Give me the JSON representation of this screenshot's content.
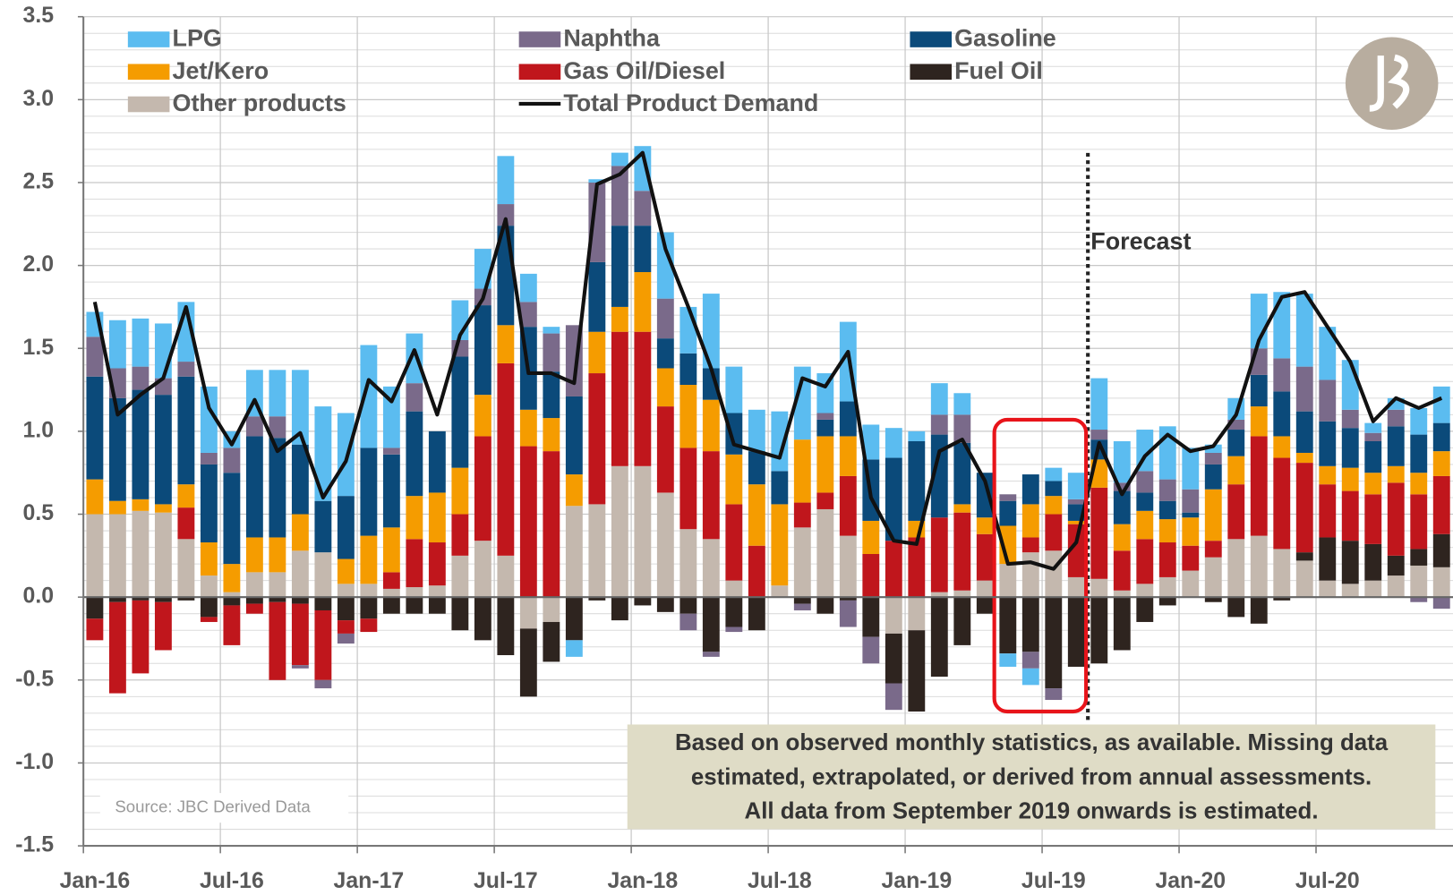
{
  "chart_data": {
    "type": "bar",
    "stacked": true,
    "categories": [
      "Jan-16",
      null,
      null,
      null,
      null,
      null,
      "Jul-16",
      null,
      null,
      null,
      null,
      null,
      "Jan-17",
      null,
      null,
      null,
      null,
      null,
      "Jul-17",
      null,
      null,
      null,
      null,
      null,
      "Jan-18",
      null,
      null,
      null,
      null,
      null,
      "Jul-18",
      null,
      null,
      null,
      null,
      null,
      "Jan-19",
      null,
      null,
      null,
      null,
      null,
      "Jul-19",
      null,
      null,
      null,
      null,
      null,
      "Jan-20",
      null,
      null,
      null,
      null,
      null,
      "Jul-20",
      null,
      null,
      null,
      null,
      null
    ],
    "series": [
      {
        "name": "LPG",
        "color": "#5bbcf0",
        "values": [
          0.15,
          0.29,
          0.29,
          0.33,
          0.36,
          0.4,
          0.1,
          0.28,
          0.28,
          0.45,
          0.57,
          0.5,
          0.62,
          0.37,
          0.3,
          0,
          0.24,
          0.24,
          0.29,
          0.17,
          0.04,
          -0.1,
          0.02,
          0.08,
          0.27,
          0.4,
          0.28,
          0.45,
          0.28,
          0.25,
          0.36,
          0.44,
          0.24,
          0.48,
          0.21,
          0.18,
          0.06,
          0.19,
          0.13,
          0,
          -0.08,
          -0.1,
          0.08,
          0.16,
          0.31,
          0.25,
          0.25,
          0.32,
          0.25,
          0.05,
          0.13,
          0.33,
          0.4,
          0.44,
          0.32,
          0.3,
          0.06,
          0.07,
          0.16,
          0.22
        ]
      },
      {
        "name": "Naphtha",
        "color": "#7a6a8a",
        "values": [
          0.24,
          0.18,
          0.14,
          0.1,
          0.09,
          0.07,
          0.15,
          0.12,
          0.13,
          -0.02,
          -0.05,
          -0.06,
          0,
          0.04,
          0.17,
          0,
          0.1,
          0.1,
          0.13,
          0.15,
          0.23,
          0.43,
          0.48,
          0.36,
          0.21,
          0.24,
          -0.1,
          -0.03,
          -0.03,
          0,
          0,
          -0.04,
          0.04,
          -0.16,
          -0.16,
          -0.16,
          0,
          0.12,
          0.17,
          0,
          0.04,
          -0.1,
          -0.07,
          0.03,
          0.06,
          0.05,
          0.13,
          0.13,
          0.14,
          0.07,
          0.06,
          0.16,
          0.2,
          0.27,
          0.25,
          0.11,
          0.05,
          0.1,
          -0.03,
          -0.07
        ]
      },
      {
        "name": "Gasoline",
        "color": "#0b4a7a",
        "values": [
          0.62,
          0.62,
          0.66,
          0.66,
          0.65,
          0.47,
          0.55,
          0.61,
          0.6,
          0.42,
          0.31,
          0.38,
          0.53,
          0.44,
          0.51,
          0.37,
          0.67,
          0.54,
          0.6,
          0.5,
          0.28,
          0.47,
          0.42,
          0.49,
          0.28,
          0.18,
          0.19,
          0.19,
          0.25,
          0.2,
          0.2,
          0,
          0.1,
          0.21,
          0.37,
          0.5,
          0.48,
          0.5,
          0.37,
          0.27,
          0.15,
          0.18,
          0.09,
          0.1,
          0.12,
          0.2,
          0.11,
          0.11,
          0.03,
          0.15,
          0.16,
          0.19,
          0.27,
          0.25,
          0.27,
          0.24,
          0.19,
          0.24,
          0.23,
          0.17
        ]
      },
      {
        "name": "Jet/Kero",
        "color": "#f59c00",
        "values": [
          0.21,
          0.08,
          0.07,
          0.05,
          0.14,
          0.2,
          0.17,
          0.21,
          0.21,
          0.22,
          0,
          0.15,
          0.29,
          0.27,
          0.26,
          0.3,
          0.28,
          0.25,
          0.23,
          0.22,
          0.2,
          0.19,
          0.25,
          0.15,
          0.36,
          0.23,
          0.38,
          0.31,
          0.3,
          0.37,
          0.49,
          0.38,
          0.34,
          0.24,
          0.2,
          0,
          0.1,
          0,
          0.05,
          0.1,
          0.23,
          0.2,
          0.11,
          0.02,
          0.17,
          0.16,
          0.17,
          0.14,
          0.17,
          0.31,
          0.17,
          0.18,
          0.13,
          0.06,
          0.11,
          0.14,
          0.13,
          0.1,
          0.13,
          0.15
        ]
      },
      {
        "name": "Gas Oil/Diesel",
        "color": "#c0161c",
        "values": [
          -0.13,
          -0.55,
          -0.44,
          -0.29,
          0.19,
          -0.03,
          -0.24,
          -0.06,
          -0.47,
          -0.37,
          -0.42,
          -0.08,
          -0.08,
          0.1,
          0.29,
          0.26,
          0.25,
          0.63,
          1.16,
          0.91,
          0.88,
          0,
          0.79,
          0.81,
          0.81,
          0.52,
          0.49,
          0.53,
          0.46,
          0.31,
          0,
          0.15,
          0.1,
          0.36,
          0.26,
          0.34,
          0.36,
          0.45,
          0.47,
          0.28,
          0,
          0.09,
          0.22,
          0.32,
          0.55,
          0.24,
          0.27,
          0.21,
          0.15,
          0.1,
          0.33,
          0.6,
          0.55,
          0.54,
          0.32,
          0.3,
          0.3,
          0.44,
          0.33,
          0.35
        ]
      },
      {
        "name": "Fuel Oil",
        "color": "#2e241f",
        "values": [
          -0.13,
          -0.03,
          -0.02,
          -0.03,
          -0.02,
          -0.12,
          -0.05,
          -0.04,
          -0.03,
          -0.04,
          -0.08,
          -0.14,
          -0.13,
          -0.1,
          -0.1,
          -0.1,
          -0.2,
          -0.26,
          -0.35,
          -0.41,
          -0.24,
          -0.26,
          -0.02,
          -0.14,
          -0.05,
          -0.09,
          -0.1,
          -0.33,
          -0.18,
          -0.2,
          0,
          -0.04,
          -0.1,
          -0.02,
          -0.24,
          -0.3,
          -0.49,
          -0.48,
          -0.29,
          -0.1,
          -0.34,
          -0.33,
          -0.55,
          -0.42,
          -0.4,
          -0.32,
          -0.15,
          -0.05,
          0,
          -0.03,
          -0.12,
          -0.16,
          -0.02,
          0.05,
          0.26,
          0.26,
          0.22,
          0.12,
          0.1,
          0.2
        ]
      },
      {
        "name": "Other products",
        "color": "#c4b8ae",
        "values": [
          0.5,
          0.5,
          0.52,
          0.51,
          0.35,
          0.13,
          0.03,
          0.15,
          0.15,
          0.28,
          0.27,
          0.08,
          0.08,
          0.05,
          0.06,
          0.07,
          0.25,
          0.34,
          0.25,
          -0.19,
          -0.15,
          0.55,
          0.56,
          0.79,
          0.79,
          0.63,
          0.41,
          0.35,
          0.1,
          0,
          0.07,
          0.42,
          0.53,
          0.37,
          0,
          -0.22,
          -0.2,
          0.03,
          0.04,
          0.1,
          0.2,
          0.27,
          0.28,
          0.12,
          0.11,
          0.04,
          0.08,
          0.12,
          0.16,
          0.24,
          0.35,
          0.37,
          0.29,
          0.22,
          0.1,
          0.08,
          0.1,
          0.13,
          0.19,
          0.18
        ]
      },
      {
        "name": "Total Product Demand",
        "color": "#111111",
        "type": "line",
        "values": [
          1.78,
          1.1,
          1.22,
          1.32,
          1.75,
          1.14,
          0.92,
          1.19,
          0.88,
          0.99,
          0.6,
          0.82,
          1.31,
          1.18,
          1.49,
          1.1,
          1.58,
          1.8,
          2.28,
          1.35,
          1.35,
          1.29,
          2.49,
          2.55,
          2.68,
          2.1,
          1.75,
          1.38,
          0.92,
          0.88,
          0.84,
          1.32,
          1.27,
          1.48,
          0.6,
          0.34,
          0.32,
          0.88,
          0.95,
          0.7,
          0.2,
          0.21,
          0.17,
          0.33,
          0.93,
          0.62,
          0.85,
          0.98,
          0.88,
          0.91,
          1.1,
          1.55,
          1.81,
          1.84,
          1.63,
          1.42,
          1.06,
          1.2,
          1.14,
          1.2
        ]
      }
    ],
    "ylim": [
      -1.5,
      3.5
    ],
    "yticks": [
      -1.5,
      {
        "value": -1,
        "label": "-1.0"
      },
      -0.5,
      {
        "value": 0,
        "label": "0.0"
      },
      0.5,
      {
        "value": 1,
        "label": "1.0"
      },
      1.5,
      {
        "value": 2,
        "label": "2.0"
      },
      2.5,
      {
        "value": 3,
        "label": "3.0"
      },
      3.5
    ],
    "grid": true,
    "annotations": {
      "forecast": "Forecast",
      "source": "Source:  JBC Derived Data",
      "note": [
        "Based on observed monthly statistics, as available. Missing data",
        "estimated, extrapolated, or derived from annual assessments.",
        "All data from September 2019 onwards is estimated."
      ]
    }
  }
}
